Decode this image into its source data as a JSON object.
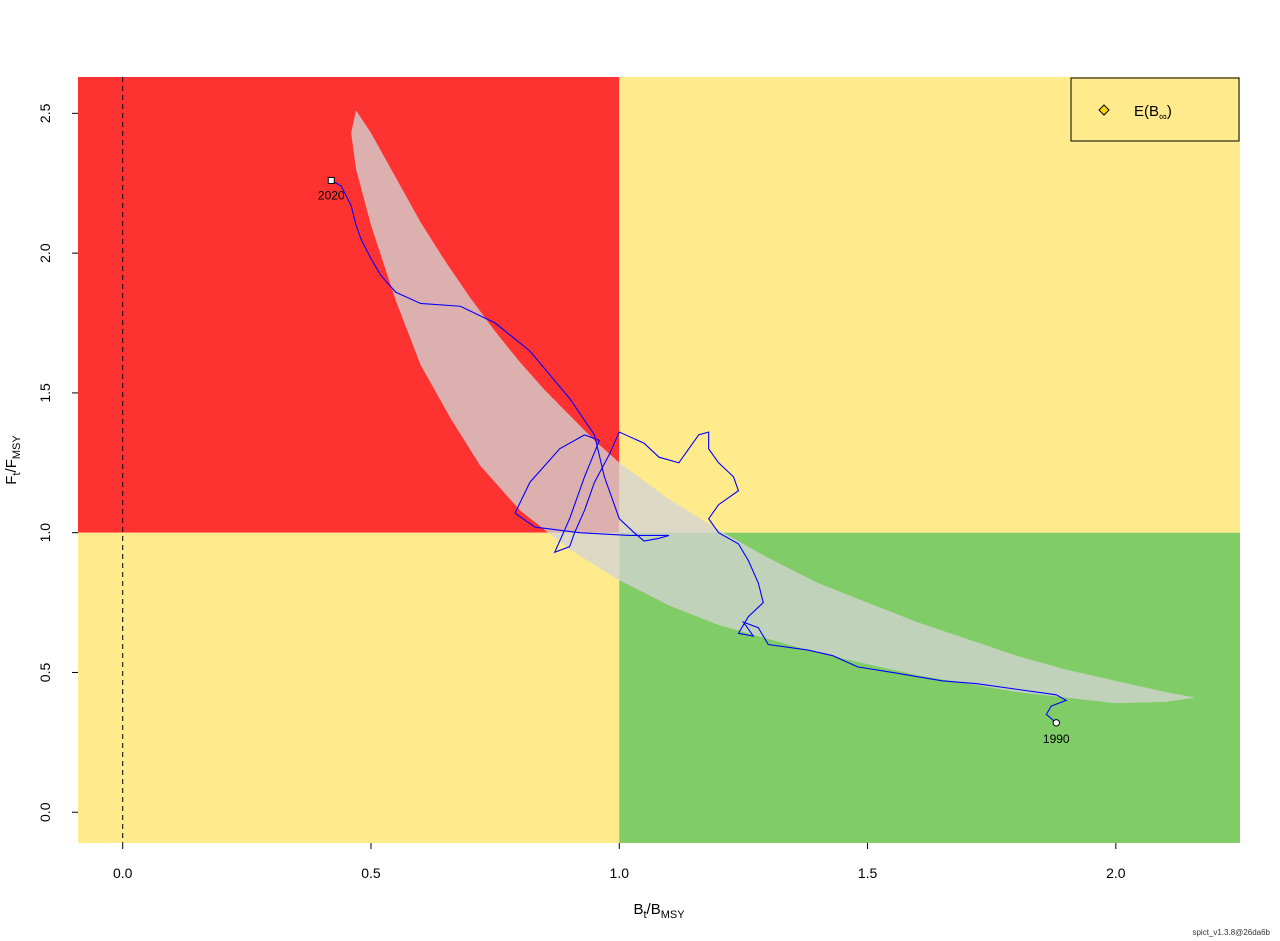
{
  "chart_data": {
    "type": "line",
    "xlabel_main": "B",
    "xlabel_sub1": "t",
    "xlabel_sep": "/",
    "xlabel_main2": "B",
    "xlabel_sub2": "MSY",
    "ylabel_main": "F",
    "ylabel_sub1": "t",
    "ylabel_sep": "/",
    "ylabel_main2": "F",
    "ylabel_sub2": "MSY",
    "xlim": [
      -0.09,
      2.25
    ],
    "ylim": [
      -0.11,
      2.63
    ],
    "xticks": [
      0.0,
      0.5,
      1.0,
      1.5,
      2.0
    ],
    "xtick_labels": [
      "0.0",
      "0.5",
      "1.0",
      "1.5",
      "2.0"
    ],
    "yticks": [
      0.0,
      0.5,
      1.0,
      1.5,
      2.0,
      2.5
    ],
    "ytick_labels": [
      "0.0",
      "0.5",
      "1.0",
      "1.5",
      "2.0",
      "2.5"
    ],
    "colors": {
      "overfished_overfishing": "#FF3232",
      "caution": "#FFEA8C",
      "healthy": "#80CC66",
      "confidence_region": "#D3D3D3",
      "trajectory": "#0000FF"
    },
    "legend": {
      "position": "top-right",
      "label_main": "E(B",
      "label_sub": "∞",
      "label_close": ")",
      "marker": "diamond",
      "marker_color": "#FFD700"
    },
    "start": {
      "label": "1990",
      "x": 1.88,
      "y": 0.32
    },
    "end": {
      "label": "2020",
      "x": 0.42,
      "y": 2.26
    },
    "confidence_ellipse": [
      [
        0.47,
        2.51
      ],
      [
        0.5,
        2.43
      ],
      [
        0.55,
        2.27
      ],
      [
        0.6,
        2.11
      ],
      [
        0.65,
        1.97
      ],
      [
        0.7,
        1.84
      ],
      [
        0.75,
        1.72
      ],
      [
        0.8,
        1.61
      ],
      [
        0.85,
        1.51
      ],
      [
        0.9,
        1.42
      ],
      [
        0.95,
        1.33
      ],
      [
        1.0,
        1.25
      ],
      [
        1.1,
        1.12
      ],
      [
        1.2,
        1.01
      ],
      [
        1.3,
        0.91
      ],
      [
        1.4,
        0.82
      ],
      [
        1.5,
        0.75
      ],
      [
        1.6,
        0.68
      ],
      [
        1.7,
        0.62
      ],
      [
        1.8,
        0.56
      ],
      [
        1.9,
        0.51
      ],
      [
        2.0,
        0.47
      ],
      [
        2.1,
        0.43
      ],
      [
        2.16,
        0.41
      ],
      [
        2.1,
        0.395
      ],
      [
        2.0,
        0.39
      ],
      [
        1.9,
        0.41
      ],
      [
        1.8,
        0.43
      ],
      [
        1.7,
        0.46
      ],
      [
        1.6,
        0.49
      ],
      [
        1.5,
        0.53
      ],
      [
        1.4,
        0.57
      ],
      [
        1.3,
        0.62
      ],
      [
        1.2,
        0.67
      ],
      [
        1.1,
        0.74
      ],
      [
        1.0,
        0.83
      ],
      [
        0.9,
        0.94
      ],
      [
        0.8,
        1.08
      ],
      [
        0.72,
        1.24
      ],
      [
        0.66,
        1.41
      ],
      [
        0.6,
        1.6
      ],
      [
        0.55,
        1.83
      ],
      [
        0.5,
        2.1
      ],
      [
        0.47,
        2.3
      ],
      [
        0.46,
        2.43
      ],
      [
        0.47,
        2.51
      ]
    ],
    "trajectory": [
      [
        1.88,
        0.32
      ],
      [
        1.86,
        0.35
      ],
      [
        1.87,
        0.38
      ],
      [
        1.9,
        0.4
      ],
      [
        1.88,
        0.42
      ],
      [
        1.8,
        0.44
      ],
      [
        1.72,
        0.46
      ],
      [
        1.65,
        0.47
      ],
      [
        1.55,
        0.5
      ],
      [
        1.48,
        0.52
      ],
      [
        1.43,
        0.56
      ],
      [
        1.38,
        0.58
      ],
      [
        1.3,
        0.6
      ],
      [
        1.28,
        0.66
      ],
      [
        1.25,
        0.68
      ],
      [
        1.27,
        0.63
      ],
      [
        1.24,
        0.64
      ],
      [
        1.26,
        0.7
      ],
      [
        1.29,
        0.75
      ],
      [
        1.28,
        0.82
      ],
      [
        1.26,
        0.9
      ],
      [
        1.24,
        0.96
      ],
      [
        1.2,
        1.0
      ],
      [
        1.18,
        1.05
      ],
      [
        1.2,
        1.1
      ],
      [
        1.24,
        1.15
      ],
      [
        1.23,
        1.2
      ],
      [
        1.2,
        1.25
      ],
      [
        1.18,
        1.3
      ],
      [
        1.18,
        1.36
      ],
      [
        1.16,
        1.35
      ],
      [
        1.14,
        1.3
      ],
      [
        1.12,
        1.25
      ],
      [
        1.08,
        1.27
      ],
      [
        1.05,
        1.32
      ],
      [
        1.0,
        1.36
      ],
      [
        0.98,
        1.28
      ],
      [
        0.95,
        1.18
      ],
      [
        0.93,
        1.08
      ],
      [
        0.91,
        1.0
      ],
      [
        0.9,
        0.95
      ],
      [
        0.87,
        0.93
      ],
      [
        0.9,
        1.05
      ],
      [
        0.93,
        1.2
      ],
      [
        0.96,
        1.33
      ],
      [
        0.93,
        1.35
      ],
      [
        0.88,
        1.3
      ],
      [
        0.82,
        1.18
      ],
      [
        0.79,
        1.07
      ],
      [
        0.83,
        1.02
      ],
      [
        0.92,
        1.0
      ],
      [
        1.02,
        0.99
      ],
      [
        1.1,
        0.99
      ],
      [
        1.08,
        0.98
      ],
      [
        1.05,
        0.97
      ],
      [
        1.03,
        1.0
      ],
      [
        1.0,
        1.05
      ],
      [
        0.97,
        1.2
      ],
      [
        0.95,
        1.35
      ],
      [
        0.9,
        1.48
      ],
      [
        0.82,
        1.65
      ],
      [
        0.75,
        1.75
      ],
      [
        0.68,
        1.81
      ],
      [
        0.6,
        1.82
      ],
      [
        0.55,
        1.86
      ],
      [
        0.52,
        1.92
      ],
      [
        0.5,
        1.98
      ],
      [
        0.48,
        2.05
      ],
      [
        0.47,
        2.1
      ],
      [
        0.46,
        2.17
      ],
      [
        0.44,
        2.24
      ],
      [
        0.42,
        2.26
      ]
    ]
  },
  "footer": {
    "version": "spict_v1.3.8@26da6b"
  }
}
